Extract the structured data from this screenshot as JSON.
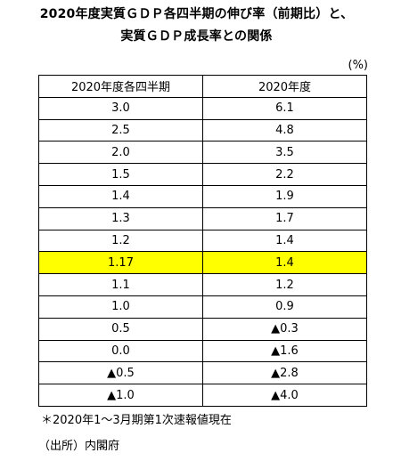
{
  "title": {
    "line1": "2020年度実質ＧＤＰ各四半期の伸び率（前期比）と、",
    "line2": "実質ＧＤＰ成長率との関係"
  },
  "unit": "(%)",
  "table": {
    "headers": [
      "2020年度各四半期",
      "2020年度"
    ],
    "highlight_color": "#ffff00",
    "highlight_row": 7,
    "rows": [
      [
        "3.0",
        "6.1"
      ],
      [
        "2.5",
        "4.8"
      ],
      [
        "2.0",
        "3.5"
      ],
      [
        "1.5",
        "2.2"
      ],
      [
        "1.4",
        "1.9"
      ],
      [
        "1.3",
        "1.7"
      ],
      [
        "1.2",
        "1.4"
      ],
      [
        "1.17",
        "1.4"
      ],
      [
        "1.1",
        "1.2"
      ],
      [
        "1.0",
        "0.9"
      ],
      [
        "0.5",
        "▲0.3"
      ],
      [
        "0.0",
        "▲1.6"
      ],
      [
        "▲0.5",
        "▲2.8"
      ],
      [
        "▲1.0",
        "▲4.0"
      ]
    ]
  },
  "notes": {
    "note1": "＊2020年1～3月期第1次速報値現在",
    "source": "（出所）内閣府"
  }
}
